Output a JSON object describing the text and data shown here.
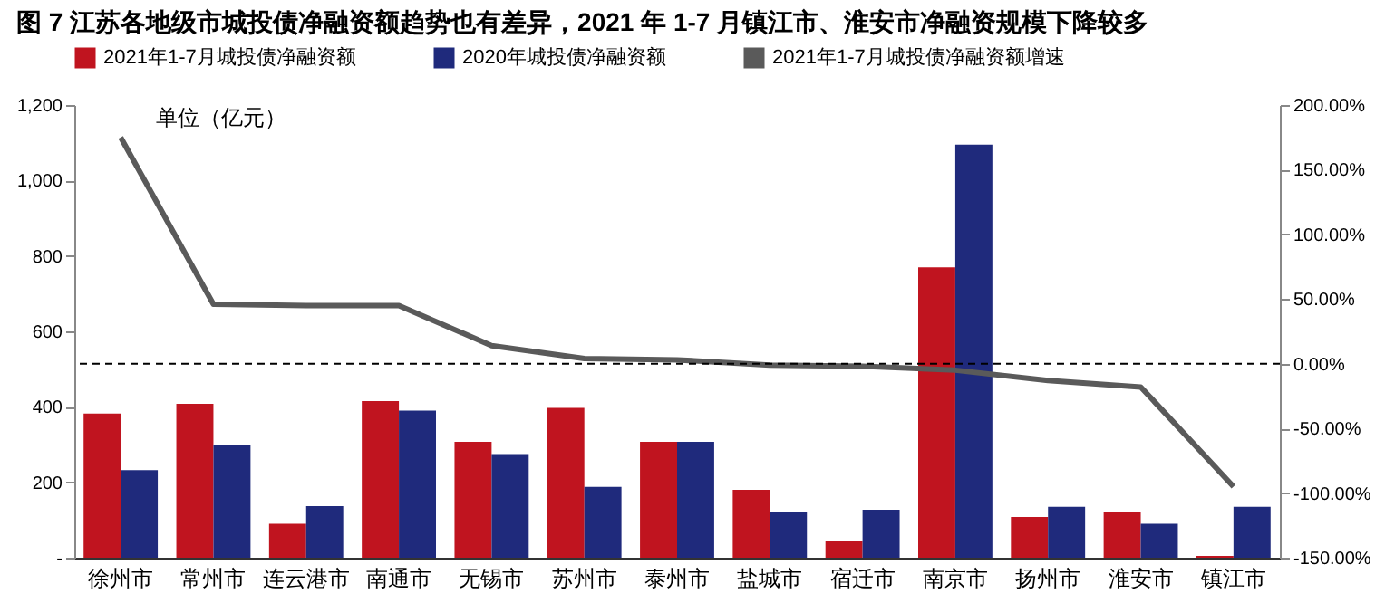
{
  "chart_data": {
    "type": "bar",
    "title": "图 7 江苏各地级市城投债净融资额趋势也有差异，2021 年 1-7 月镇江市、淮安市净融资规模下降较多",
    "categories": [
      "徐州市",
      "常州市",
      "连云港市",
      "南通市",
      "无锡市",
      "苏州市",
      "泰州市",
      "盐城市",
      "宿迁市",
      "南京市",
      "扬州市",
      "淮安市",
      "镇江市"
    ],
    "series": [
      {
        "name": "2021年1-7月城投债净融资额",
        "color": "#c0141f",
        "values": [
          382,
          408,
          90,
          415,
          307,
          397,
          307,
          180,
          43,
          770,
          108,
          120,
          5
        ]
      },
      {
        "name": "2020年城投债净融资额",
        "color": "#1f2a7c",
        "values": [
          232,
          300,
          137,
          390,
          275,
          188,
          307,
          122,
          127,
          1095,
          135,
          90,
          135
        ]
      },
      {
        "name": "2021年1-7月城投债净融资额增速",
        "type": "line",
        "axis": "y2",
        "color": "#5a5a5a",
        "values": [
          175,
          46,
          45,
          45,
          14,
          4,
          3,
          -1,
          -2,
          -5,
          -13,
          -18,
          -95
        ]
      }
    ],
    "ylim": [
      0,
      1200
    ],
    "yticks": [
      {
        "value": 0,
        "label": "-"
      },
      200,
      400,
      600,
      800,
      {
        "value": 1000,
        "label": "1,000"
      },
      {
        "value": 1200,
        "label": "1,200"
      }
    ],
    "y2lim": [
      -150,
      200
    ],
    "y2ticks": [
      {
        "value": -150,
        "label": "-150.00%"
      },
      {
        "value": -100,
        "label": "-100.00%"
      },
      {
        "value": -50,
        "label": "-50.00%"
      },
      {
        "value": 0,
        "label": "0.00%"
      },
      {
        "value": 50,
        "label": "50.00%"
      },
      {
        "value": 100,
        "label": "100.00%"
      },
      {
        "value": 150,
        "label": "150.00%"
      },
      {
        "value": 200,
        "label": "200.00%"
      }
    ],
    "ref_lines": [
      {
        "axis": "y2",
        "value": 0,
        "line_style": "dashed",
        "color": "#000000"
      }
    ],
    "annotations": [
      "单位（亿元）"
    ],
    "legend": "top",
    "grid": false
  }
}
